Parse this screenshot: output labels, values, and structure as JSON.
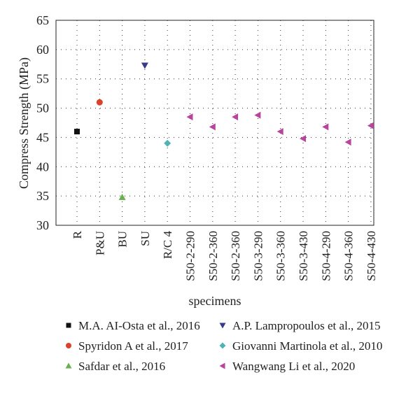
{
  "chart_data": {
    "type": "scatter",
    "title": "",
    "xlabel": "specimens",
    "ylabel": "Compress Strength (MPa)",
    "ylim": [
      30,
      65
    ],
    "yticks": [
      30,
      35,
      40,
      45,
      50,
      55,
      60,
      65
    ],
    "grid": true,
    "legend_placement": "bottom",
    "categories": [
      "R",
      "P&U",
      "BU",
      "SU",
      "R/C 4",
      "S50-2-290",
      "S50-2-360",
      "S50-2-360",
      "S50-3-290",
      "S50-3-360",
      "S50-3-430",
      "S50-4-290",
      "S50-4-360",
      "S50-4-430"
    ],
    "series": [
      {
        "name": "M.A. AI-Osta et al., 2016",
        "marker": "square",
        "color": "#111111",
        "points": [
          {
            "x": "R",
            "y": 46
          }
        ]
      },
      {
        "name": "Spyridon A et al., 2017",
        "marker": "circle",
        "color": "#d9432b",
        "points": [
          {
            "x": "P&U",
            "y": 51
          }
        ]
      },
      {
        "name": "Safdar et al., 2016",
        "marker": "triangle-up",
        "color": "#6ab04c",
        "points": [
          {
            "x": "BU",
            "y": 34.8
          }
        ]
      },
      {
        "name": "A.P. Lampropoulos et al., 2015",
        "marker": "triangle-down",
        "color": "#3a3a8c",
        "points": [
          {
            "x": "SU",
            "y": 57.3
          }
        ]
      },
      {
        "name": "Giovanni Martinola et al., 2010",
        "marker": "diamond",
        "color": "#4fb3b3",
        "points": [
          {
            "x": "R/C 4",
            "y": 44
          }
        ]
      },
      {
        "name": "Wangwang Li et al., 2020",
        "marker": "triangle-left",
        "color": "#b8459b",
        "points": [
          {
            "x": "S50-2-290",
            "y": 48.5
          },
          {
            "x": "S50-2-360",
            "y": 46.8
          },
          {
            "x": "S50-2-360",
            "y": 48.5
          },
          {
            "x": "S50-3-290",
            "y": 48.8
          },
          {
            "x": "S50-3-360",
            "y": 46
          },
          {
            "x": "S50-3-430",
            "y": 44.8
          },
          {
            "x": "S50-4-290",
            "y": 46.8
          },
          {
            "x": "S50-4-360",
            "y": 44.2
          },
          {
            "x": "S50-4-430",
            "y": 47
          }
        ]
      }
    ]
  }
}
